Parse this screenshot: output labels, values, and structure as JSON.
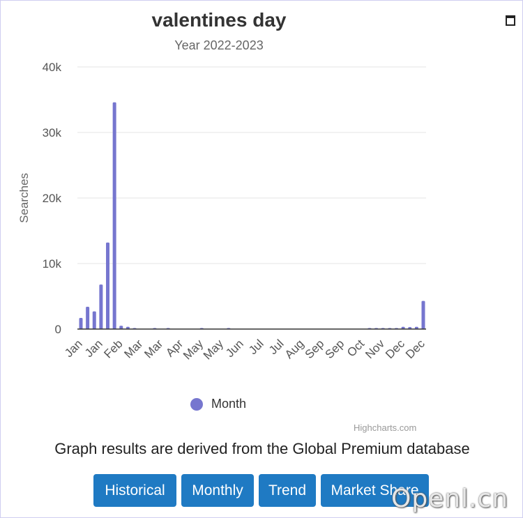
{
  "chart": {
    "title": "valentines day",
    "subtitle": "Year 2022-2023",
    "menu_icon": "hamburger-menu-icon",
    "credits": "Highcharts.com"
  },
  "note": "Graph results are derived from the Global Premium database",
  "buttons": [
    {
      "label": "Historical"
    },
    {
      "label": "Monthly"
    },
    {
      "label": "Trend"
    },
    {
      "label": "Market Share"
    }
  ],
  "watermark": "Openl.cn",
  "colors": {
    "series": "#7676cf",
    "button": "#1f7ac3",
    "grid": "#e6e6e6",
    "axis": "#333333"
  },
  "chart_data": {
    "type": "bar",
    "title": "valentines day",
    "subtitle": "Year 2022-2023",
    "xlabel": "",
    "ylabel": "Searches",
    "ylim": [
      0,
      40000
    ],
    "yticks": [
      0,
      10000,
      20000,
      30000,
      40000
    ],
    "ytick_labels": [
      "0",
      "10k",
      "20k",
      "30k",
      "40k"
    ],
    "grid": true,
    "legend": {
      "position": "bottom",
      "entries": [
        "Month"
      ]
    },
    "x_tick_labels": [
      "Jan",
      "Jan",
      "Feb",
      "Mar",
      "Mar",
      "Apr",
      "May",
      "May",
      "Jun",
      "Jul",
      "Jul",
      "Aug",
      "Sep",
      "Sep",
      "Oct",
      "Nov",
      "Dec",
      "Dec"
    ],
    "x_tick_every": 3,
    "series": [
      {
        "name": "Month",
        "values": [
          1700,
          3400,
          2700,
          6800,
          13200,
          34600,
          500,
          350,
          150,
          0,
          0,
          100,
          0,
          100,
          0,
          0,
          0,
          0,
          100,
          0,
          0,
          0,
          100,
          0,
          0,
          0,
          0,
          0,
          0,
          0,
          0,
          0,
          0,
          0,
          0,
          0,
          0,
          0,
          0,
          0,
          0,
          0,
          0,
          100,
          100,
          100,
          100,
          150,
          350,
          300,
          350,
          4300
        ]
      }
    ]
  }
}
